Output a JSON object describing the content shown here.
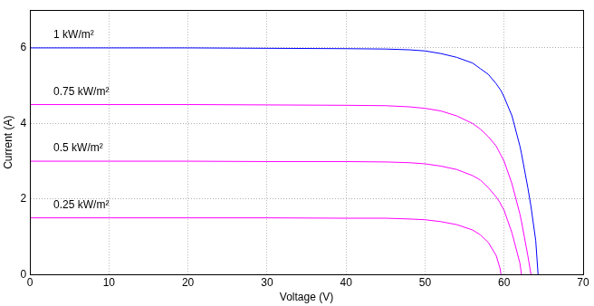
{
  "chart_data": {
    "type": "line",
    "x_label": "Voltage (V)",
    "y_label": "Current (A)",
    "x": [
      0,
      10,
      20,
      30,
      40,
      45,
      48,
      50,
      52,
      54,
      56,
      57,
      58,
      59,
      59.5,
      59.6,
      60,
      61,
      62,
      62.2,
      63,
      63.4,
      64,
      64.3
    ],
    "series": [
      {
        "name": "1 kW/m²",
        "color": "#0000ff",
        "values": [
          6,
          6,
          6,
          5.99,
          5.98,
          5.97,
          5.95,
          5.92,
          5.85,
          5.75,
          5.6,
          5.45,
          5.3,
          5.05,
          4.9,
          4.87,
          4.7,
          4.2,
          3.4,
          3.2,
          2.3,
          1.8,
          0.9,
          0
        ]
      },
      {
        "name": "0.75 kW/m²",
        "color": "#ff00ff",
        "values": [
          4.5,
          4.5,
          4.5,
          4.49,
          4.48,
          4.47,
          4.44,
          4.4,
          4.33,
          4.2,
          4.0,
          3.85,
          3.65,
          3.4,
          3.2,
          3.16,
          3.0,
          2.4,
          1.6,
          1.4,
          0.5,
          0,
          null,
          null
        ]
      },
      {
        "name": "0.5 kW/m²",
        "color": "#ff00ff",
        "values": [
          3,
          3,
          3,
          2.99,
          2.99,
          2.98,
          2.96,
          2.93,
          2.87,
          2.78,
          2.62,
          2.5,
          2.3,
          2.05,
          1.9,
          1.85,
          1.7,
          1.1,
          0.3,
          0,
          null,
          null,
          null,
          null
        ]
      },
      {
        "name": "0.25 kW/m²",
        "color": "#ff00ff",
        "values": [
          1.5,
          1.5,
          1.5,
          1.5,
          1.49,
          1.49,
          1.47,
          1.45,
          1.4,
          1.32,
          1.18,
          1.05,
          0.85,
          0.5,
          0.15,
          0,
          null,
          null,
          null,
          null,
          null,
          null,
          null,
          null
        ]
      }
    ],
    "xlim": [
      0,
      70
    ],
    "xticks": [
      0,
      10,
      20,
      30,
      40,
      50,
      60,
      70
    ],
    "ylim": [
      0,
      7
    ],
    "yticks": [
      0,
      2,
      4,
      6
    ],
    "grid": true
  }
}
